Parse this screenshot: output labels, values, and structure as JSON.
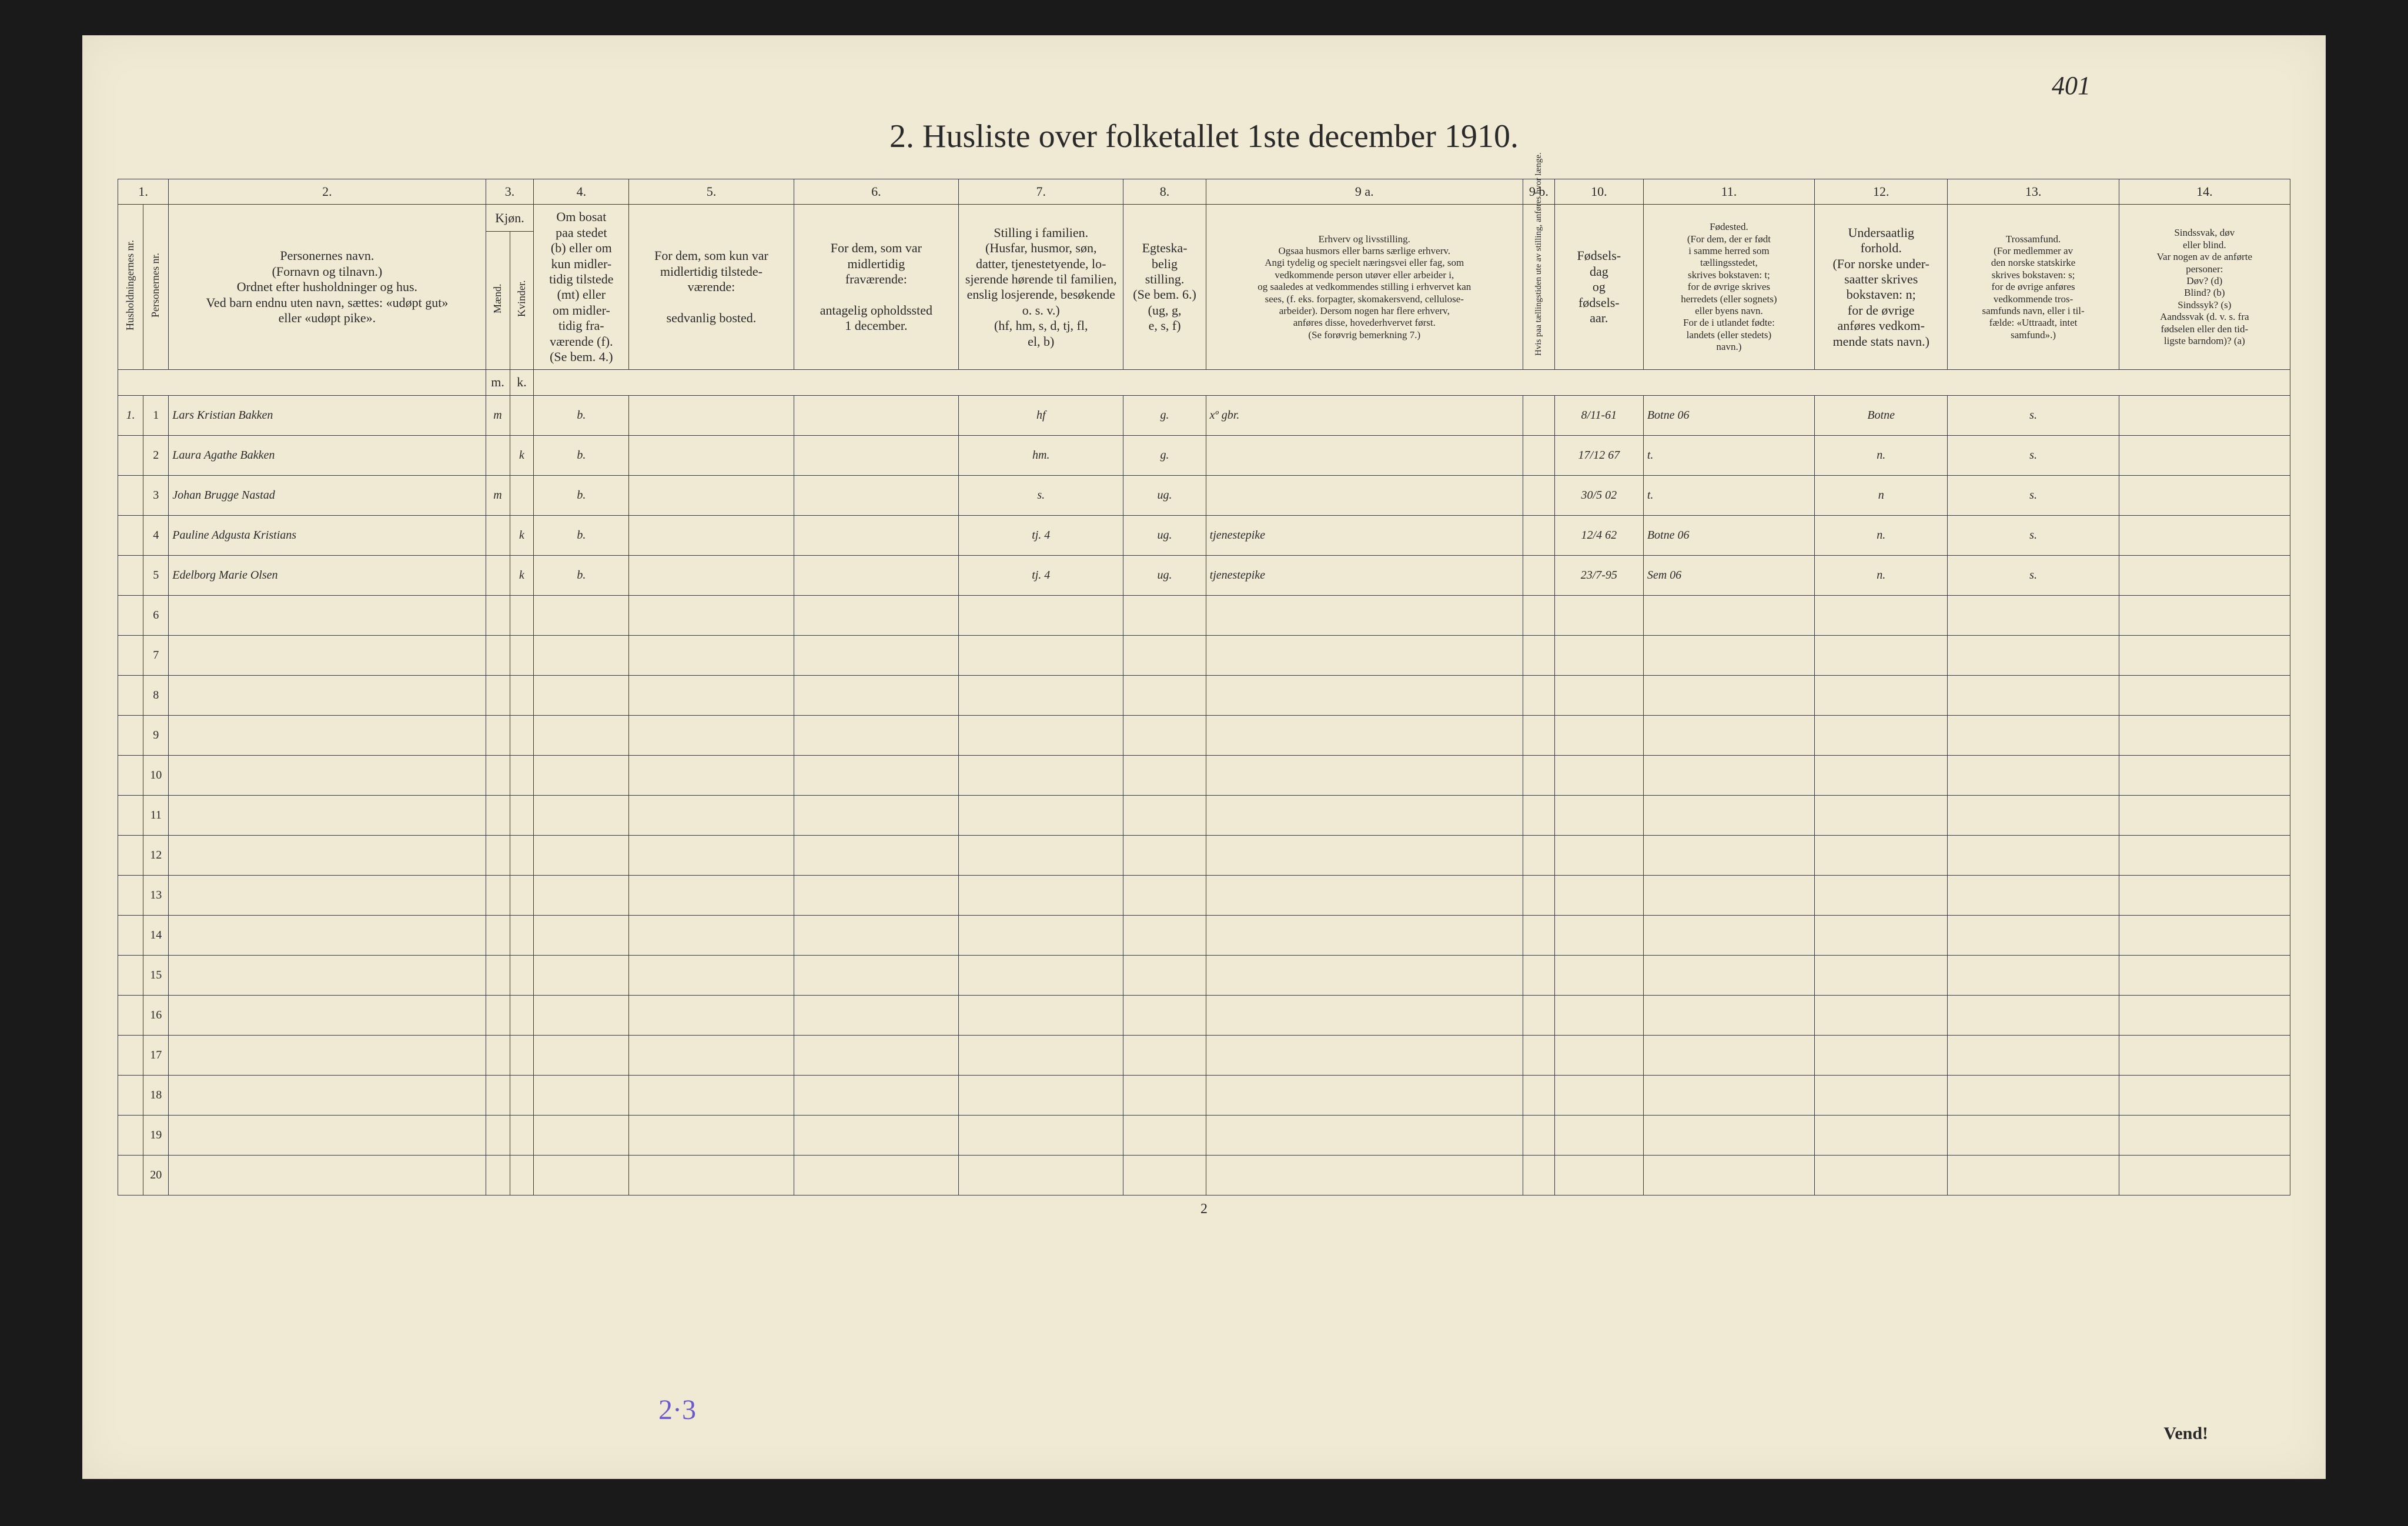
{
  "page_number_handwritten": "401",
  "title": "2.  Husliste over folketallet 1ste december 1910.",
  "column_numbers": [
    "1.",
    "2.",
    "3.",
    "4.",
    "5.",
    "6.",
    "7.",
    "8.",
    "9 a.",
    "9 b.",
    "10.",
    "11.",
    "12.",
    "13.",
    "14."
  ],
  "headers": {
    "c1a": "Husholdningernes nr.",
    "c1b": "Personernes nr.",
    "c2": "Personernes navn.\n(Fornavn og tilnavn.)\nOrdnet efter husholdninger og hus.\nVed barn endnu uten navn, sættes: «udøpt gut»\neller «udøpt pike».",
    "c3": "Kjøn.",
    "c3a": "Mænd.",
    "c3b": "Kvinder.",
    "c4": "Om bosat\npaa stedet\n(b) eller om\nkun midler-\ntidig tilstede\n(mt) eller\nom midler-\ntidig fra-\nværende (f).\n(Se bem. 4.)",
    "c5": "For dem, som kun var\nmidlertidig tilstede-\nværende:\n\nsedvanlig bosted.",
    "c6": "For dem, som var\nmidlertidig\nfraværende:\n\nantagelig opholdssted\n1 december.",
    "c7": "Stilling i familien.\n(Husfar, husmor, søn,\ndatter, tjenestetyende, lo-\nsjerende hørende til familien,\nenslig losjerende, besøkende\no. s. v.)\n(hf, hm, s, d, tj, fl,\nel, b)",
    "c8": "Egteska-\nbelig\nstilling.\n(Se bem. 6.)\n(ug, g,\ne, s, f)",
    "c9a": "Erhverv og livsstilling.\nOgsaa husmors eller barns særlige erhverv.\nAngi tydelig og specielt næringsvei eller fag, som\nvedkommende person utøver eller arbeider i,\nog saaledes at vedkommendes stilling i erhvervet kan\nsees, (f. eks. forpagter, skomakersvend, cellulose-\narbeider). Dersom nogen har flere erhverv,\nanføres disse, hovederhvervet først.\n(Se forøvrig bemerkning 7.)",
    "c9b": "Hvis paa tællingstiden ute\nav stilling, anføres\nhvor længe.",
    "c10": "Fødsels-\ndag\nog\nfødsels-\naar.",
    "c11": "Fødested.\n(For dem, der er født\ni samme herred som\ntællingsstedet,\nskrives bokstaven: t;\nfor de øvrige skrives\nherredets (eller sognets)\neller byens navn.\nFor de i utlandet fødte:\nlandets (eller stedets)\nnavn.)",
    "c12": "Undersaatlig\nforhold.\n(For norske under-\nsaatter skrives\nbokstaven: n;\nfor de øvrige\nanføres vedkom-\nmende stats navn.)",
    "c13": "Trossamfund.\n(For medlemmer av\nden norske statskirke\nskrives bokstaven: s;\nfor de øvrige anføres\nvedkommende tros-\nsamfunds navn, eller i til-\nfælde: «Uttraadt, intet\nsamfund».)",
    "c14": "Sindssvak, døv\neller blind.\nVar nogen av de anførte\npersoner:\nDøv?        (d)\nBlind?      (b)\nSindssyk?  (s)\nAandssvak (d. v. s. fra\nfødselen eller den tid-\nligste barndom)? (a)",
    "mk_m": "m.",
    "mk_k": "k."
  },
  "rows": [
    {
      "hh": "1.",
      "pn": "1",
      "name": "Lars Kristian Bakken",
      "m": "m",
      "k": "",
      "c4": "b.",
      "c5": "",
      "c6": "",
      "c7": "hf",
      "c8": "g.",
      "c9a": "xº  gbr.",
      "c9b": "",
      "c10": "8/11-61",
      "c11": "Botne  06",
      "c12": "Botne",
      "c13": "s.",
      "c14": ""
    },
    {
      "hh": "",
      "pn": "2",
      "name": "Laura Agathe Bakken",
      "m": "",
      "k": "k",
      "c4": "b.",
      "c5": "",
      "c6": "",
      "c7": "hm.",
      "c8": "g.",
      "c9a": "",
      "c9b": "",
      "c10": "17/12 67",
      "c11": "t.",
      "c12": "n.",
      "c13": "s.",
      "c14": ""
    },
    {
      "hh": "",
      "pn": "3",
      "name": "Johan Brugge Nastad",
      "m": "m",
      "k": "",
      "c4": "b.",
      "c5": "",
      "c6": "",
      "c7": "s.",
      "c8": "ug.",
      "c9a": "",
      "c9b": "",
      "c10": "30/5 02",
      "c11": "t.",
      "c12": "n",
      "c13": "s.",
      "c14": ""
    },
    {
      "hh": "",
      "pn": "4",
      "name": "Pauline Adgusta Kristians",
      "m": "",
      "k": "k",
      "c4": "b.",
      "c5": "",
      "c6": "",
      "c7": "tj.    4",
      "c8": "ug.",
      "c9a": "tjenestepike",
      "c9b": "",
      "c10": "12/4 62",
      "c11": "Botne 06",
      "c12": "n.",
      "c13": "s.",
      "c14": ""
    },
    {
      "hh": "",
      "pn": "5",
      "name": "Edelborg Marie Olsen",
      "m": "",
      "k": "k",
      "c4": "b.",
      "c5": "",
      "c6": "",
      "c7": "tj.    4",
      "c8": "ug.",
      "c9a": "tjenestepike",
      "c9b": "",
      "c10": "23/7-95",
      "c11": "Sem 06",
      "c12": "n.",
      "c13": "s.",
      "c14": ""
    }
  ],
  "empty_row_numbers": [
    "6",
    "7",
    "8",
    "9",
    "10",
    "11",
    "12",
    "13",
    "14",
    "15",
    "16",
    "17",
    "18",
    "19",
    "20"
  ],
  "footer_page_number": "2",
  "footer_handwritten": "2·3",
  "vend": "Vend!",
  "colwidths": {
    "c1a": 40,
    "c1b": 40,
    "c2": 500,
    "c3m": 38,
    "c3k": 38,
    "c4": 150,
    "c5": 260,
    "c6": 260,
    "c7": 260,
    "c8": 130,
    "c9a": 500,
    "c9b": 50,
    "c10": 140,
    "c11": 270,
    "c12": 210,
    "c13": 270,
    "c14": 270
  },
  "colors": {
    "paper": "#f0ead4",
    "ink": "#2a2a2a",
    "border": "#3a3a3a",
    "pencil_blue": "#6a5acd"
  }
}
